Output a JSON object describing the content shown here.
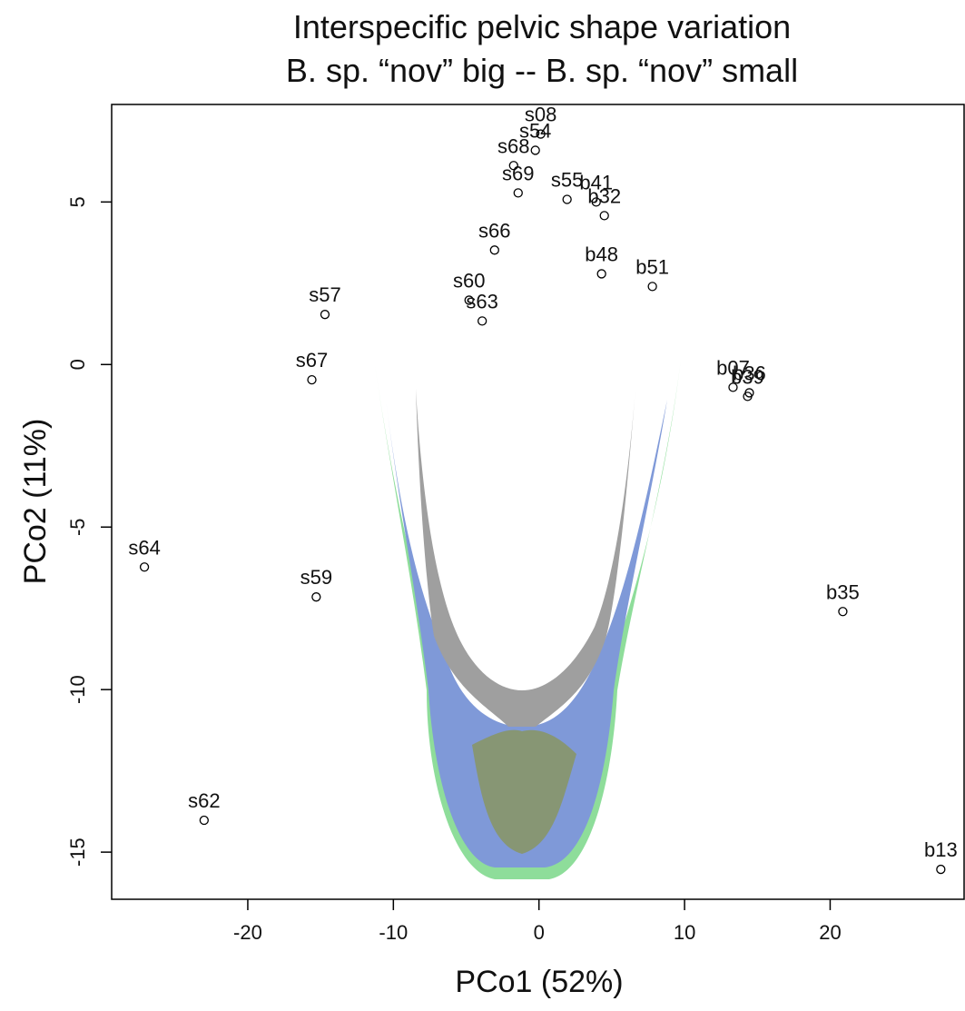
{
  "chart_data": {
    "type": "scatter",
    "title": "Interspecific pelvic shape variation",
    "subtitle": "B. sp. “nov” big -- B. sp. “nov” small",
    "xlabel": "PCo1 (52%)",
    "ylabel": "PCo2 (11%)",
    "labels": [
      "s64",
      "s62",
      "s59",
      "s67",
      "s57",
      "s60",
      "s63",
      "s66",
      "s69",
      "s68",
      "s54",
      "s08",
      "s55",
      "b41",
      "b32",
      "b48",
      "b51",
      "b07",
      "b36",
      "b39",
      "b35",
      "b13"
    ],
    "x": [
      -27.1,
      -23.0,
      -15.3,
      -15.6,
      -14.7,
      -4.8,
      -3.9,
      -3.05,
      -1.43,
      -1.74,
      -0.25,
      0.12,
      1.93,
      3.93,
      4.49,
      4.3,
      7.79,
      13.33,
      14.45,
      14.33,
      20.87,
      27.6
    ],
    "y": [
      -6.23,
      -14.02,
      -7.15,
      -0.47,
      1.54,
      1.98,
      1.34,
      3.52,
      5.28,
      6.12,
      6.59,
      7.09,
      5.08,
      5.0,
      4.58,
      2.79,
      2.4,
      -0.7,
      -0.87,
      -0.98,
      -7.6,
      -15.53
    ],
    "xlim": [
      -29.35,
      29.2
    ],
    "ylim": [
      -16.45,
      8.0
    ],
    "xticks": [
      -20,
      -10,
      0,
      10,
      20
    ],
    "yticks": [
      -15,
      -10,
      -5,
      0,
      5
    ]
  }
}
